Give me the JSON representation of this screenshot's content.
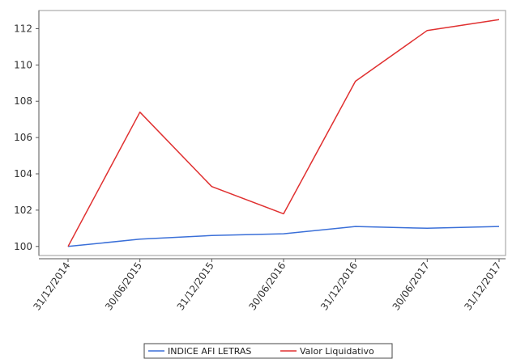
{
  "chart_data": {
    "type": "line",
    "categories": [
      "31/12/2014",
      "30/06/2015",
      "31/12/2015",
      "30/06/2016",
      "31/12/2016",
      "30/06/2017",
      "31/12/2017"
    ],
    "series": [
      {
        "name": "INDICE AFI LETRAS",
        "color": "#3a6fd8",
        "values": [
          100.0,
          100.4,
          100.6,
          100.7,
          101.1,
          101.0,
          101.1
        ]
      },
      {
        "name": "Valor Liquidativo",
        "color": "#e03030",
        "values": [
          100.0,
          107.4,
          103.3,
          101.8,
          109.1,
          111.9,
          112.5
        ]
      }
    ],
    "ylim": [
      99.5,
      113.0
    ],
    "yticks": [
      "100",
      "102",
      "104",
      "106",
      "108",
      "110",
      "112"
    ],
    "grid": false,
    "legend_position": "bottom"
  }
}
